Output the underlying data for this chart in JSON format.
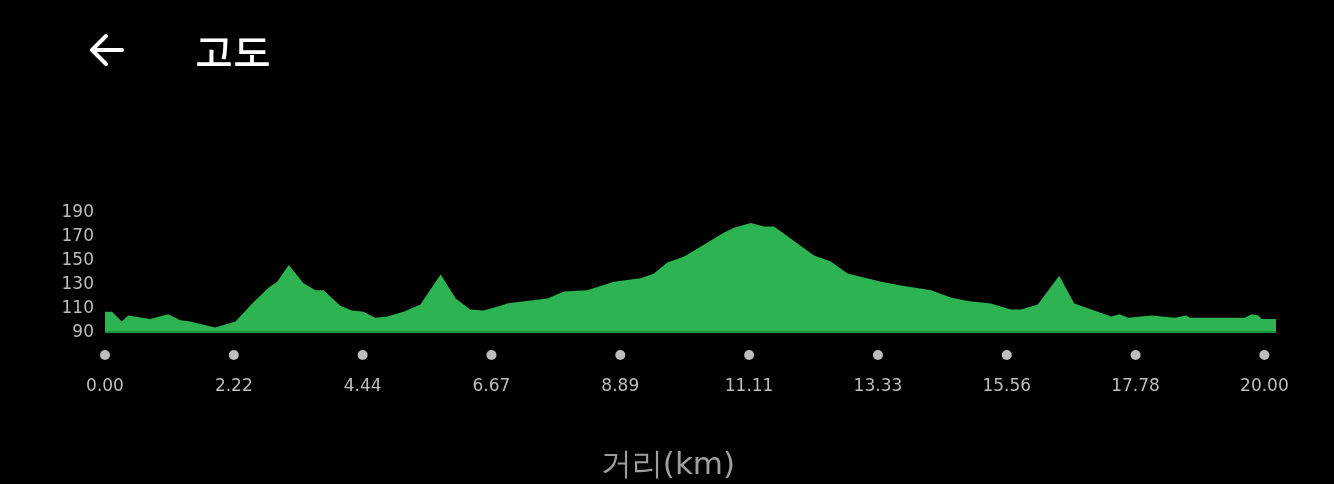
{
  "chart_data": {
    "type": "area",
    "title": "고도",
    "xlabel": "거리(km)",
    "color": "#2db352",
    "x": [
      0,
      0.12,
      0.29,
      0.4,
      0.78,
      1.09,
      1.3,
      1.47,
      1.9,
      2.25,
      2.56,
      2.82,
      2.97,
      3.17,
      3.42,
      3.63,
      3.77,
      4.06,
      4.26,
      4.46,
      4.66,
      4.87,
      5.15,
      5.44,
      5.79,
      6.05,
      6.3,
      6.53,
      6.82,
      6.94,
      7.63,
      7.92,
      8.32,
      8.78,
      9.24,
      9.47,
      9.7,
      9.99,
      10.68,
      10.85,
      11.14,
      11.37,
      11.54,
      12.23,
      12.52,
      12.81,
      13.39,
      13.73,
      14.25,
      14.59,
      14.88,
      15.28,
      15.63,
      15.8,
      16.09,
      16.46,
      16.72,
      17.36,
      17.5,
      17.65,
      18.05,
      18.45,
      18.65,
      18.72,
      19.66,
      19.78,
      19.9,
      19.95,
      20.2
    ],
    "values": [
      106,
      106,
      98,
      103,
      100,
      104,
      99,
      98,
      93,
      98,
      114,
      126,
      131,
      145,
      130,
      124,
      124,
      111,
      107,
      106,
      101,
      102,
      106,
      112,
      137,
      117,
      108,
      107,
      111,
      113,
      117,
      123,
      124,
      131,
      134,
      138,
      147,
      152,
      172,
      176,
      180,
      177,
      177,
      153,
      148,
      138,
      131,
      128,
      124,
      118,
      115,
      113,
      108,
      108,
      112,
      136,
      113,
      102,
      104,
      101,
      103,
      101,
      103,
      101,
      101,
      104,
      103,
      100,
      100
    ],
    "xlim": [
      0,
      20.2
    ],
    "ylim": [
      90,
      190
    ],
    "xticks": [
      {
        "value": 0,
        "label": "0.00"
      },
      {
        "value": 2.2222,
        "label": "2.22"
      },
      {
        "value": 4.4444,
        "label": "4.44"
      },
      {
        "value": 6.6667,
        "label": "6.67"
      },
      {
        "value": 8.8889,
        "label": "8.89"
      },
      {
        "value": 11.1111,
        "label": "11.11"
      },
      {
        "value": 13.3333,
        "label": "13.33"
      },
      {
        "value": 15.5556,
        "label": "15.56"
      },
      {
        "value": 17.7778,
        "label": "17.78"
      },
      {
        "value": 20,
        "label": "20.00"
      }
    ],
    "yticks": [
      90,
      110,
      130,
      150,
      170,
      190
    ]
  }
}
